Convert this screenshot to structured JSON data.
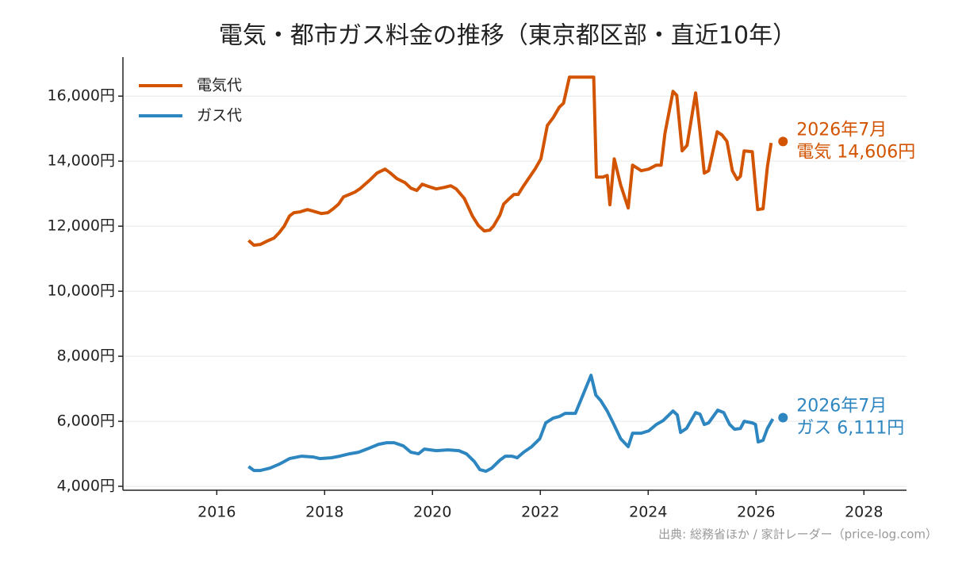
{
  "chart_data": {
    "type": "line",
    "title": "電気・都市ガス料金の推移（東京都区部・直近10年）",
    "source": "出典: 総務省ほか / 家計レーダー（price-log.com）",
    "xlim": [
      2014.26,
      2028.79
    ],
    "xticks": [
      2016,
      2018,
      2020,
      2022,
      2024,
      2026,
      2028
    ],
    "ylim": [
      3880,
      17200
    ],
    "yticks": [
      {
        "value": 4000,
        "label": "4,000円"
      },
      {
        "value": 6000,
        "label": "6,000円"
      },
      {
        "value": 8000,
        "label": "8,000円"
      },
      {
        "value": 10000,
        "label": "10,000円"
      },
      {
        "value": 12000,
        "label": "12,000円"
      },
      {
        "value": 14000,
        "label": "14,000円"
      },
      {
        "value": 16000,
        "label": "16,000円"
      }
    ],
    "grid": true,
    "legend": "upper-left",
    "series": [
      {
        "name": "電気代",
        "color": "#d35400",
        "x": [
          2016.59,
          2016.69,
          2016.81,
          2016.96,
          2017.06,
          2017.16,
          2017.25,
          2017.35,
          2017.43,
          2017.54,
          2017.68,
          2017.79,
          2017.94,
          2018.06,
          2018.16,
          2018.26,
          2018.35,
          2018.46,
          2018.56,
          2018.65,
          2018.75,
          2018.85,
          2018.97,
          2019.12,
          2019.22,
          2019.34,
          2019.49,
          2019.6,
          2019.71,
          2019.81,
          2019.93,
          2020.07,
          2020.22,
          2020.34,
          2020.44,
          2020.59,
          2020.74,
          2020.85,
          2020.96,
          2021.06,
          2021.13,
          2021.25,
          2021.32,
          2021.43,
          2021.51,
          2021.59,
          2021.69,
          2021.81,
          2021.91,
          2022.01,
          2022.13,
          2022.24,
          2022.35,
          2022.43,
          2022.54,
          2022.65,
          2022.99,
          2023.04,
          2023.16,
          2023.24,
          2023.29,
          2023.37,
          2023.49,
          2023.63,
          2023.71,
          2023.87,
          2024.01,
          2024.15,
          2024.24,
          2024.31,
          2024.46,
          2024.53,
          2024.63,
          2024.72,
          2024.88,
          2024.96,
          2025.04,
          2025.12,
          2025.28,
          2025.37,
          2025.46,
          2025.56,
          2025.65,
          2025.71,
          2025.78,
          2025.93,
          2026.03,
          2026.13,
          2026.21,
          2026.28
        ],
        "values": [
          11561,
          11415,
          11439,
          11561,
          11634,
          11805,
          12000,
          12317,
          12415,
          12439,
          12512,
          12463,
          12390,
          12415,
          12537,
          12683,
          12902,
          12976,
          13049,
          13146,
          13293,
          13439,
          13634,
          13756,
          13634,
          13463,
          13341,
          13171,
          13098,
          13293,
          13220,
          13146,
          13195,
          13244,
          13146,
          12854,
          12317,
          12024,
          11854,
          11878,
          12000,
          12341,
          12683,
          12854,
          12976,
          12976,
          13244,
          13537,
          13780,
          14073,
          15098,
          15341,
          15659,
          15780,
          16585,
          16585,
          16585,
          13512,
          13512,
          13561,
          12659,
          14073,
          13268,
          12561,
          13878,
          13707,
          13756,
          13878,
          13878,
          14854,
          16146,
          16024,
          14317,
          14488,
          16098,
          14927,
          13634,
          13707,
          14902,
          14805,
          14610,
          13707,
          13439,
          13537,
          14317,
          14293,
          12512,
          12537,
          13829,
          14561
        ],
        "end_point": {
          "x": 2026.5,
          "value": 14606,
          "date_label": "2026年7月",
          "label": "電気 14,606円"
        }
      },
      {
        "name": "ガス代",
        "color": "#2e86c1",
        "x": [
          2016.59,
          2016.69,
          2016.81,
          2016.99,
          2017.16,
          2017.35,
          2017.57,
          2017.79,
          2017.91,
          2018.12,
          2018.28,
          2018.46,
          2018.63,
          2018.82,
          2019.0,
          2019.15,
          2019.29,
          2019.46,
          2019.6,
          2019.74,
          2019.85,
          2020.07,
          2020.29,
          2020.49,
          2020.63,
          2020.78,
          2020.88,
          2020.99,
          2021.1,
          2021.25,
          2021.35,
          2021.47,
          2021.57,
          2021.69,
          2021.84,
          2021.99,
          2022.1,
          2022.24,
          2022.35,
          2022.46,
          2022.65,
          2022.94,
          2023.03,
          2023.12,
          2023.24,
          2023.35,
          2023.49,
          2023.63,
          2023.71,
          2023.87,
          2024.01,
          2024.15,
          2024.28,
          2024.46,
          2024.54,
          2024.6,
          2024.71,
          2024.88,
          2024.96,
          2025.04,
          2025.12,
          2025.29,
          2025.4,
          2025.51,
          2025.6,
          2025.71,
          2025.78,
          2025.93,
          2025.99,
          2026.04,
          2026.13,
          2026.21,
          2026.31
        ],
        "values": [
          4610,
          4488,
          4488,
          4561,
          4683,
          4854,
          4927,
          4902,
          4854,
          4878,
          4927,
          5000,
          5049,
          5171,
          5293,
          5341,
          5341,
          5244,
          5049,
          5000,
          5146,
          5098,
          5122,
          5098,
          5000,
          4756,
          4512,
          4463,
          4561,
          4805,
          4927,
          4927,
          4878,
          5049,
          5220,
          5463,
          5951,
          6098,
          6146,
          6244,
          6244,
          7415,
          6805,
          6634,
          6317,
          5951,
          5463,
          5220,
          5634,
          5634,
          5707,
          5902,
          6024,
          6317,
          6195,
          5659,
          5780,
          6268,
          6220,
          5902,
          5951,
          6341,
          6268,
          5902,
          5756,
          5780,
          6000,
          5951,
          5902,
          5366,
          5415,
          5780,
          6073
        ],
        "end_point": {
          "x": 2026.5,
          "value": 6111,
          "date_label": "2026年7月",
          "label": "ガス 6,111円"
        }
      }
    ]
  }
}
